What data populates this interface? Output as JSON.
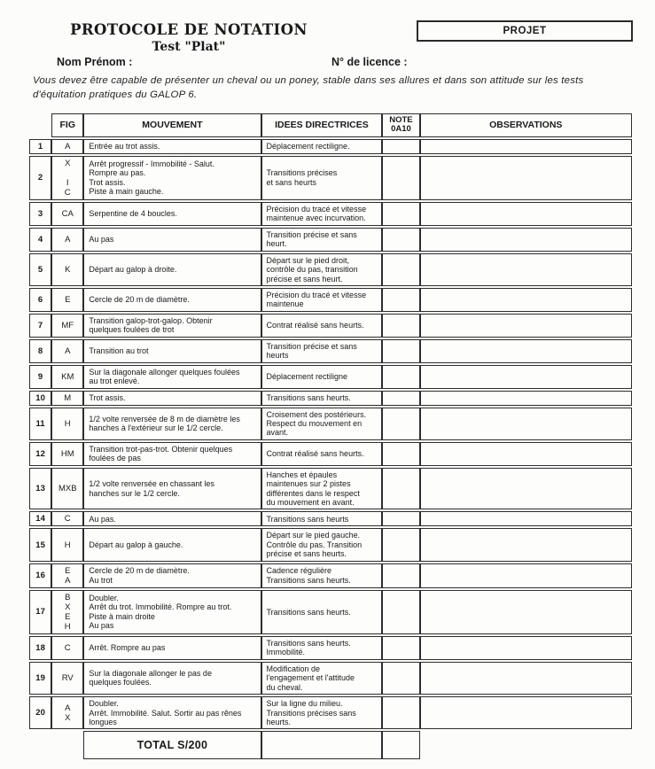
{
  "page": {
    "title": "PROTOCOLE DE NOTATION",
    "subtitle": "Test \"Plat\"",
    "project_label": "PROJET",
    "name_label": "Nom Prénom :",
    "licence_label": "N° de licence :",
    "intro": "Vous devez être capable de présenter un cheval ou un poney, stable dans ses allures et dans son attitude sur les tests d'équitation pratiques du GALOP 6."
  },
  "table": {
    "headers": {
      "fig": "FIG",
      "mouvement": "MOUVEMENT",
      "idees": "IDEES DIRECTRICES",
      "note_line1": "NOTE",
      "note_line2": "0A10",
      "observations": "OBSERVATIONS"
    },
    "rows": [
      {
        "num": "1",
        "fig": [
          "A"
        ],
        "mouvement": [
          "Entrée au trot assis."
        ],
        "idees": [
          "Déplacement rectiligne."
        ]
      },
      {
        "num": "2",
        "fig": [
          "X",
          "",
          "I",
          "C"
        ],
        "mouvement": [
          "Arrêt progressif - Immobilité - Salut.",
          "Rompre au pas.",
          "Trot assis.",
          "Piste à main gauche."
        ],
        "idees": [
          "Transitions précises",
          "et sans heurts"
        ]
      },
      {
        "num": "3",
        "fig": [
          "CA"
        ],
        "mouvement": [
          "Serpentine de 4 boucles."
        ],
        "idees": [
          "Précision du tracé et vitesse",
          "maintenue avec incurvation."
        ]
      },
      {
        "num": "4",
        "fig": [
          "A"
        ],
        "mouvement": [
          "Au pas"
        ],
        "idees": [
          "Transition précise et sans",
          "heurt."
        ]
      },
      {
        "num": "5",
        "fig": [
          "K"
        ],
        "mouvement": [
          "Départ au galop à droite."
        ],
        "idees": [
          "Départ sur le pied droit,",
          "contrôle du pas, transition",
          "précise et sans heurt."
        ]
      },
      {
        "num": "6",
        "fig": [
          "E"
        ],
        "mouvement": [
          "Cercle de 20 m de diamètre."
        ],
        "idees": [
          "Précision du tracé et vitesse",
          "maintenue"
        ]
      },
      {
        "num": "7",
        "fig": [
          "MF"
        ],
        "mouvement": [
          "Transition galop-trot-galop. Obtenir",
          "quelques foulées de trot"
        ],
        "idees": [
          "Contrat réalisé sans heurts."
        ]
      },
      {
        "num": "8",
        "fig": [
          "A"
        ],
        "mouvement": [
          "Transition au trot"
        ],
        "idees": [
          "Transition précise et sans",
          "heurts"
        ]
      },
      {
        "num": "9",
        "fig": [
          "KM"
        ],
        "mouvement": [
          "Sur la diagonale allonger quelques foulées",
          "au trot enlevé."
        ],
        "idees": [
          "Déplacement rectiligne"
        ]
      },
      {
        "num": "10",
        "fig": [
          "M"
        ],
        "mouvement": [
          "Trot assis."
        ],
        "idees": [
          "Transitions sans heurts."
        ]
      },
      {
        "num": "11",
        "fig": [
          "H"
        ],
        "mouvement": [
          "1/2 volte renversée de 8 m de diamètre les",
          "hanches à l'extérieur sur le 1/2 cercle."
        ],
        "idees": [
          "Croisement des postérieurs.",
          "Respect du mouvement en",
          "avant."
        ]
      },
      {
        "num": "12",
        "fig": [
          "HM"
        ],
        "mouvement": [
          "Transition trot-pas-trot. Obtenir quelques",
          "foulées de pas"
        ],
        "idees": [
          "Contrat réalisé sans heurts."
        ]
      },
      {
        "num": "13",
        "fig": [
          "MXB"
        ],
        "mouvement": [
          "1/2 volte renversée en chassant les",
          "hanches sur le 1/2 cercle."
        ],
        "idees": [
          "Hanches et épaules",
          "maintenues sur 2 pistes",
          "différentes dans le respect",
          "du mouvement en avant."
        ]
      },
      {
        "num": "14",
        "fig": [
          "C"
        ],
        "mouvement": [
          "Au pas."
        ],
        "idees": [
          "Transitions sans heurts"
        ]
      },
      {
        "num": "15",
        "fig": [
          "H"
        ],
        "mouvement": [
          "Départ au galop à gauche."
        ],
        "idees": [
          "Départ sur le pied gauche.",
          "Contrôle du pas. Transition",
          "précise et sans heurts."
        ]
      },
      {
        "num": "16",
        "fig": [
          "E",
          "A"
        ],
        "mouvement": [
          "Cercle de 20 m de diamètre.",
          "Au trot"
        ],
        "idees": [
          "Cadence régulière",
          "Transitions sans heurts."
        ]
      },
      {
        "num": "17",
        "fig": [
          "B",
          "X",
          "E",
          "H"
        ],
        "mouvement": [
          "Doubler.",
          "Arrêt du trot. Immobilité. Rompre au trot.",
          "Piste à main droite",
          "Au pas"
        ],
        "idees": [
          "Transitions sans heurts."
        ]
      },
      {
        "num": "18",
        "fig": [
          "C"
        ],
        "mouvement": [
          "Arrêt. Rompre au pas"
        ],
        "idees": [
          "Transitions sans heurts.",
          "Immobilité."
        ]
      },
      {
        "num": "19",
        "fig": [
          "RV"
        ],
        "mouvement": [
          "Sur la diagonale allonger le pas de",
          "quelques foulées."
        ],
        "idees": [
          "Modification de",
          "l'engagement et l'attitude",
          "du cheval."
        ]
      },
      {
        "num": "20",
        "fig": [
          "A",
          "X"
        ],
        "mouvement": [
          "Doubler.",
          "Arrêt. Immobilité. Salut. Sortir au pas rênes",
          "longues"
        ],
        "idees": [
          "Sur la ligne du milieu.",
          "Transitions précises sans",
          "heurts."
        ]
      }
    ],
    "total_label": "TOTAL S/200"
  }
}
